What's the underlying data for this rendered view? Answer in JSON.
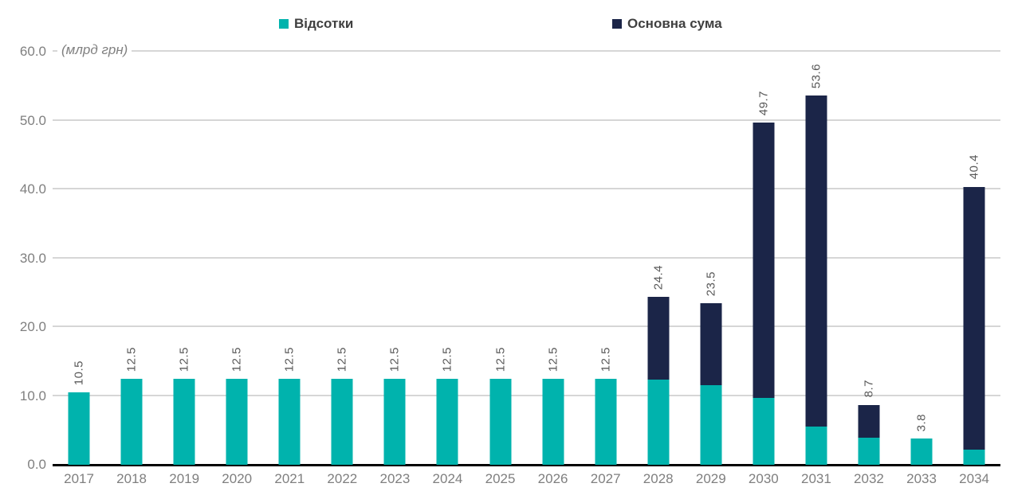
{
  "chart_data": {
    "type": "bar",
    "stacked": true,
    "title": "",
    "unit_label": "(млрд грн)",
    "categories": [
      "2017",
      "2018",
      "2019",
      "2020",
      "2021",
      "2022",
      "2023",
      "2024",
      "2025",
      "2026",
      "2027",
      "2028",
      "2029",
      "2030",
      "2031",
      "2032",
      "2033",
      "2034"
    ],
    "series": [
      {
        "name": "Відсотки",
        "color": "#00B3AD",
        "values": [
          10.5,
          12.5,
          12.5,
          12.5,
          12.5,
          12.5,
          12.5,
          12.5,
          12.5,
          12.5,
          12.5,
          12.4,
          11.6,
          9.7,
          5.6,
          3.9,
          3.8,
          2.2
        ]
      },
      {
        "name": "Основна сума",
        "color": "#1B2548",
        "values": [
          0,
          0,
          0,
          0,
          0,
          0,
          0,
          0,
          0,
          0,
          0,
          12.0,
          11.9,
          40.0,
          48.0,
          4.8,
          0,
          38.2
        ]
      }
    ],
    "total_labels": [
      "10.5",
      "12.5",
      "12.5",
      "12.5",
      "12.5",
      "12.5",
      "12.5",
      "12.5",
      "12.5",
      "12.5",
      "12.5",
      "24.4",
      "23.5",
      "49.7",
      "53.6",
      "8.7",
      "3.8",
      "40.4"
    ],
    "ylim": [
      0,
      60
    ],
    "ytick_step": 10,
    "yticks": [
      "0.0",
      "10.0",
      "20.0",
      "30.0",
      "40.0",
      "50.0",
      "60.0"
    ],
    "grid": "horizontal",
    "legend_position": "top",
    "colors": {
      "gridline": "#D6D6D6",
      "axis_line": "#000000",
      "tick_label": "#7F7F7F",
      "data_label": "#595959",
      "legend_text": "#404040",
      "background": "#FFFFFF"
    }
  }
}
